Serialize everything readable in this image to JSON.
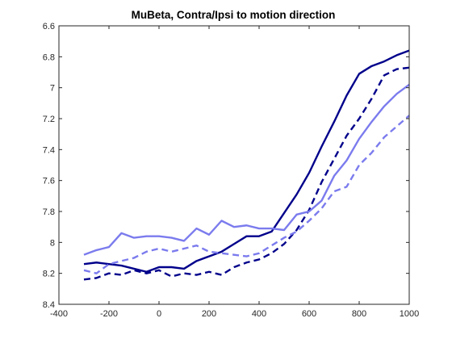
{
  "chart_data": {
    "type": "line",
    "title": "MuBeta, Contra/Ipsi to motion direction",
    "xlabel": "",
    "ylabel": "",
    "xlim": [
      -400,
      1000
    ],
    "ylim": [
      6.6,
      8.4
    ],
    "y_reversed": true,
    "grid": false,
    "legend": "none",
    "xticks": [
      -400,
      -200,
      0,
      200,
      400,
      600,
      800,
      1000
    ],
    "xtick_labels": [
      "-400",
      "-200",
      "0",
      "200",
      "400",
      "600",
      "800",
      "1000"
    ],
    "yticks": [
      6.6,
      6.8,
      7.0,
      7.2,
      7.4,
      7.6,
      7.8,
      8.0,
      8.2,
      8.4
    ],
    "ytick_labels": [
      "6.6",
      "6.8",
      "7",
      "7.2",
      "7.4",
      "7.6",
      "7.8",
      "8",
      "8.2",
      "8.4"
    ],
    "x": [
      -300,
      -250,
      -200,
      -150,
      -100,
      -50,
      0,
      50,
      100,
      150,
      200,
      250,
      300,
      350,
      400,
      450,
      500,
      550,
      600,
      650,
      700,
      750,
      800,
      850,
      900,
      950,
      1000
    ],
    "series": [
      {
        "color": "#00008b",
        "line_style": "solid",
        "values": [
          8.14,
          8.13,
          8.14,
          8.15,
          8.17,
          8.19,
          8.16,
          8.16,
          8.17,
          8.12,
          8.09,
          8.06,
          8.01,
          7.96,
          7.96,
          7.93,
          7.81,
          7.69,
          7.55,
          7.38,
          7.22,
          7.05,
          6.91,
          6.86,
          6.83,
          6.79,
          6.76
        ]
      },
      {
        "color": "#00008b",
        "line_style": "dashed",
        "values": [
          8.24,
          8.23,
          8.2,
          8.21,
          8.18,
          8.2,
          8.18,
          8.22,
          8.2,
          8.21,
          8.19,
          8.21,
          8.16,
          8.13,
          8.11,
          8.07,
          8.01,
          7.92,
          7.79,
          7.61,
          7.46,
          7.31,
          7.2,
          7.07,
          6.92,
          6.88,
          6.87
        ]
      },
      {
        "color": "#7b7bee",
        "line_style": "solid",
        "values": [
          8.08,
          8.05,
          8.03,
          7.94,
          7.97,
          7.96,
          7.96,
          7.97,
          7.99,
          7.91,
          7.95,
          7.86,
          7.9,
          7.89,
          7.91,
          7.91,
          7.92,
          7.82,
          7.8,
          7.73,
          7.57,
          7.47,
          7.33,
          7.22,
          7.12,
          7.04,
          6.98
        ]
      },
      {
        "color": "#7b7bee",
        "line_style": "dashed",
        "values": [
          8.18,
          8.2,
          8.14,
          8.12,
          8.1,
          8.06,
          8.04,
          8.06,
          8.04,
          8.02,
          8.06,
          8.07,
          8.08,
          8.09,
          8.07,
          8.02,
          7.97,
          7.93,
          7.86,
          7.78,
          7.67,
          7.64,
          7.5,
          7.42,
          7.32,
          7.25,
          7.18
        ]
      }
    ]
  }
}
